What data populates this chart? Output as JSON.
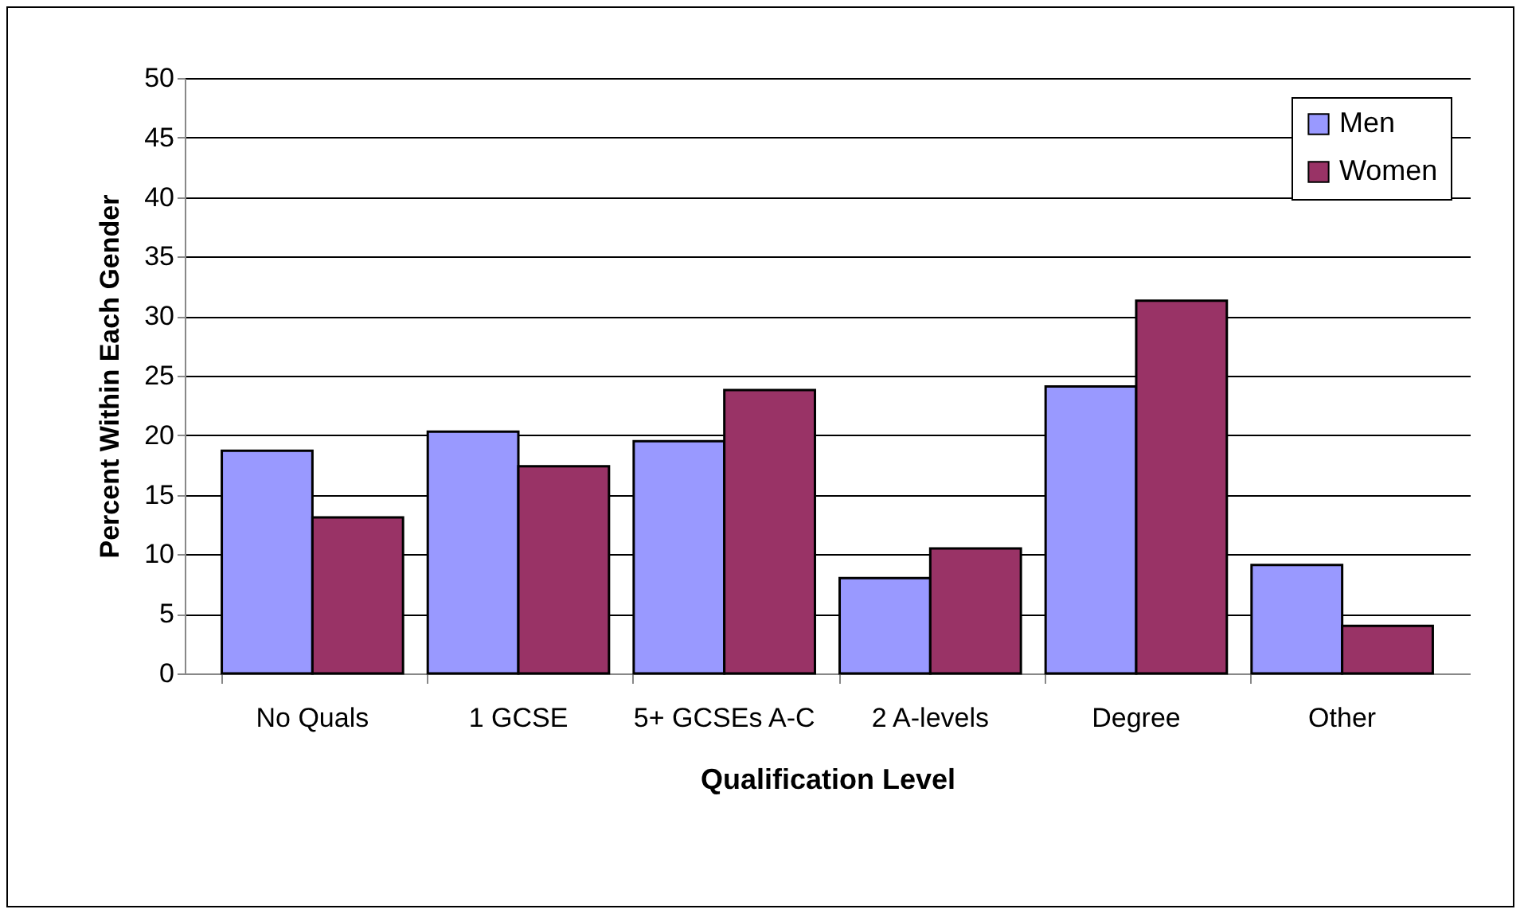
{
  "chart_data": {
    "type": "bar",
    "xlabel": "Qualification Level",
    "ylabel": "Percent Within Each Gender",
    "categories": [
      "No Quals",
      "1 GCSE",
      "5+ GCSEs A-C",
      "2 A-levels",
      "Degree",
      "Other"
    ],
    "series": [
      {
        "name": "Men",
        "color": "#9999ff",
        "values": [
          18.7,
          20.3,
          19.5,
          8.0,
          24.1,
          9.1
        ]
      },
      {
        "name": "Women",
        "color": "#993366",
        "values": [
          13.1,
          17.4,
          23.8,
          10.5,
          31.3,
          4.0
        ]
      }
    ],
    "ylim": [
      0,
      50
    ],
    "yticks": [
      0,
      5,
      10,
      15,
      20,
      25,
      30,
      35,
      40,
      45,
      50
    ],
    "grid": "y",
    "legend": "top right"
  }
}
